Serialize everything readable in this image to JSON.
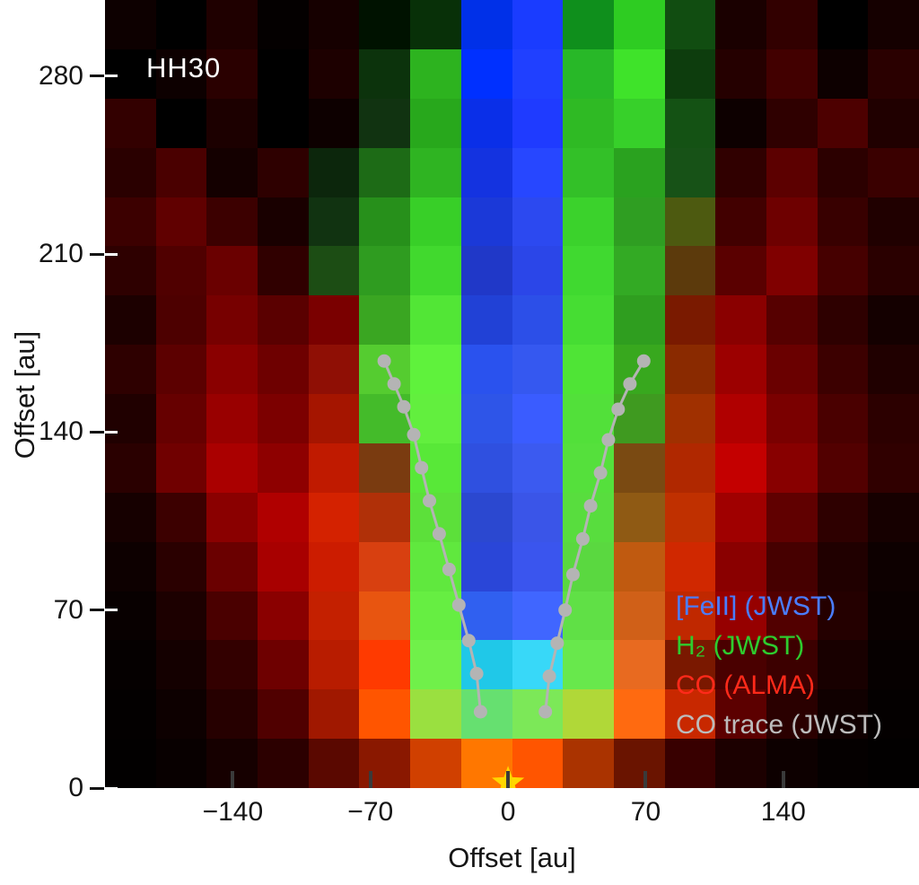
{
  "chart_data": {
    "type": "heatmap",
    "title": "HH30",
    "xlabel": "Offset [au]",
    "ylabel": "Offset [au]",
    "x_ticks": [
      -140,
      -70,
      0,
      70,
      140
    ],
    "y_ticks": [
      0,
      70,
      140,
      210,
      280
    ],
    "xlim": [
      -205,
      209
    ],
    "ylim": [
      0,
      310
    ],
    "grid": "off",
    "legend_position": "lower-right",
    "legend": [
      {
        "id": "feii",
        "label": "[FeII] (JWST)",
        "color": "#4a7dff"
      },
      {
        "id": "h2",
        "label": "H₂ (JWST)",
        "color": "#2ecc2e"
      },
      {
        "id": "co",
        "label": "CO (ALMA)",
        "color": "#ff2a1a"
      },
      {
        "id": "co-trace",
        "label": "CO trace (JWST)",
        "color": "#bcbcbc"
      }
    ],
    "source_star": {
      "x": 0,
      "y": 2,
      "color": "#ffd700"
    },
    "co_trace": {
      "color": "#b4b4b4",
      "left": [
        [
          -14,
          30
        ],
        [
          -16,
          45
        ],
        [
          -20,
          58
        ],
        [
          -25,
          72
        ],
        [
          -30,
          86
        ],
        [
          -35,
          100
        ],
        [
          -40,
          113
        ],
        [
          -44,
          126
        ],
        [
          -48,
          139
        ],
        [
          -53,
          150
        ],
        [
          -58,
          159
        ],
        [
          -63,
          168
        ]
      ],
      "right": [
        [
          19,
          30
        ],
        [
          21,
          44
        ],
        [
          25,
          57
        ],
        [
          29,
          70
        ],
        [
          33,
          84
        ],
        [
          38,
          98
        ],
        [
          42,
          111
        ],
        [
          47,
          124
        ],
        [
          51,
          137
        ],
        [
          56,
          149
        ],
        [
          62,
          159
        ],
        [
          69,
          168
        ]
      ]
    },
    "image_grid": {
      "rows": 16,
      "cols": 16,
      "pixels": [
        [
          "#0d0000",
          "#000000",
          "#1f0000",
          "#040000",
          "#160000",
          "#001200",
          "#083008",
          "#0030e8",
          "#1a3cff",
          "#0f8f1c",
          "#2ecc22",
          "#114d11",
          "#1a0000",
          "#320000",
          "#000000",
          "#150000"
        ],
        [
          "#000000",
          "#0d0000",
          "#2a0000",
          "#000000",
          "#1d0000",
          "#0c330c",
          "#2db31f",
          "#0030ff",
          "#2040ff",
          "#28b828",
          "#3fe32a",
          "#0d3d0d",
          "#250000",
          "#420000",
          "#0d0000",
          "#2a0000"
        ],
        [
          "#330000",
          "#000000",
          "#1c0000",
          "#000000",
          "#0d0000",
          "#113311",
          "#28a81c",
          "#0a2fe8",
          "#1f3bff",
          "#2fba24",
          "#37d02a",
          "#145214",
          "#0d0000",
          "#2f0000",
          "#4d0000",
          "#200000"
        ],
        [
          "#2a0000",
          "#4a0000",
          "#140000",
          "#2e0000",
          "#0c260c",
          "#1d6b16",
          "#2fb422",
          "#1433e0",
          "#2747ff",
          "#33c028",
          "#2aa21f",
          "#175217",
          "#300000",
          "#5c0000",
          "#2c0000",
          "#3a0000"
        ],
        [
          "#3c0000",
          "#600000",
          "#3c0000",
          "#190000",
          "#113311",
          "#27901b",
          "#38cf28",
          "#1b39d8",
          "#2c49f0",
          "#3bd22c",
          "#2f9e22",
          "#4d5a10",
          "#420000",
          "#6e0000",
          "#380000",
          "#200000"
        ],
        [
          "#2e0000",
          "#500000",
          "#6a0000",
          "#300000",
          "#1c4d14",
          "#2f9c20",
          "#41d92e",
          "#2038c8",
          "#2b46e8",
          "#40d930",
          "#33aa24",
          "#5c3a0c",
          "#5a0000",
          "#800000",
          "#460000",
          "#2a0000"
        ],
        [
          "#1c0000",
          "#4d0000",
          "#770000",
          "#5a0000",
          "#7a0000",
          "#3aa622",
          "#52e636",
          "#2141d6",
          "#2c4fe8",
          "#46dd33",
          "#2f9e1f",
          "#7a1a00",
          "#8a0000",
          "#560000",
          "#2e0000",
          "#140000"
        ],
        [
          "#2e0000",
          "#5c0000",
          "#8a0000",
          "#6e0000",
          "#8f0f05",
          "#55cc30",
          "#5ff23c",
          "#2a52ee",
          "#3558f0",
          "#4fe436",
          "#38a81e",
          "#8a2a00",
          "#9c0000",
          "#6a0000",
          "#3c0000",
          "#200000"
        ],
        [
          "#200000",
          "#660000",
          "#990000",
          "#7c0000",
          "#a51500",
          "#44bb2a",
          "#62ef3e",
          "#2e55e8",
          "#3a5cff",
          "#52e03a",
          "#3f9a20",
          "#a03000",
          "#b00000",
          "#7a0000",
          "#4a0000",
          "#2c0000"
        ],
        [
          "#2a0000",
          "#700000",
          "#aa0000",
          "#8e0000",
          "#c01a00",
          "#7a3b10",
          "#58e838",
          "#2f50e0",
          "#3b5af0",
          "#55e03c",
          "#7a4a12",
          "#b02800",
          "#c40000",
          "#880000",
          "#520000",
          "#300000"
        ],
        [
          "#160000",
          "#3c0000",
          "#8a0000",
          "#b00000",
          "#d42200",
          "#b03008",
          "#5ce03a",
          "#2b48d0",
          "#3a55e8",
          "#58dd3e",
          "#8f5a14",
          "#c03000",
          "#a00000",
          "#600000",
          "#2e0000",
          "#160000"
        ],
        [
          "#0d0000",
          "#2a0000",
          "#6a0000",
          "#a80000",
          "#cc1c00",
          "#d84010",
          "#60e83e",
          "#2a46d8",
          "#3a55ee",
          "#5ad840",
          "#c05a10",
          "#d02800",
          "#8a0000",
          "#460000",
          "#200000",
          "#0d0000"
        ],
        [
          "#080000",
          "#1c0000",
          "#4a0000",
          "#8a0000",
          "#c42000",
          "#e85510",
          "#66ee42",
          "#3060f0",
          "#4066ff",
          "#60e046",
          "#d06018",
          "#c02800",
          "#960000",
          "#520000",
          "#240000",
          "#0a0000"
        ],
        [
          "#050000",
          "#140000",
          "#330000",
          "#6e0000",
          "#b81c00",
          "#ff3a00",
          "#70f04a",
          "#20c8e8",
          "#38d8f8",
          "#68e84c",
          "#e86a20",
          "#7a1800",
          "#4a0000",
          "#3c0000",
          "#180000",
          "#060000"
        ],
        [
          "#030000",
          "#0d0000",
          "#260000",
          "#500000",
          "#a01800",
          "#ff5500",
          "#9ae040",
          "#66e070",
          "#7ce858",
          "#b0d838",
          "#ff6a10",
          "#c82800",
          "#5c0000",
          "#2a0000",
          "#100000",
          "#040000"
        ],
        [
          "#020000",
          "#080000",
          "#160000",
          "#2c0000",
          "#5a0800",
          "#8a1800",
          "#d04000",
          "#ff7700",
          "#ff5500",
          "#aa3300",
          "#6a1400",
          "#380000",
          "#1c0000",
          "#0d0000",
          "#050000",
          "#020000"
        ]
      ]
    }
  }
}
